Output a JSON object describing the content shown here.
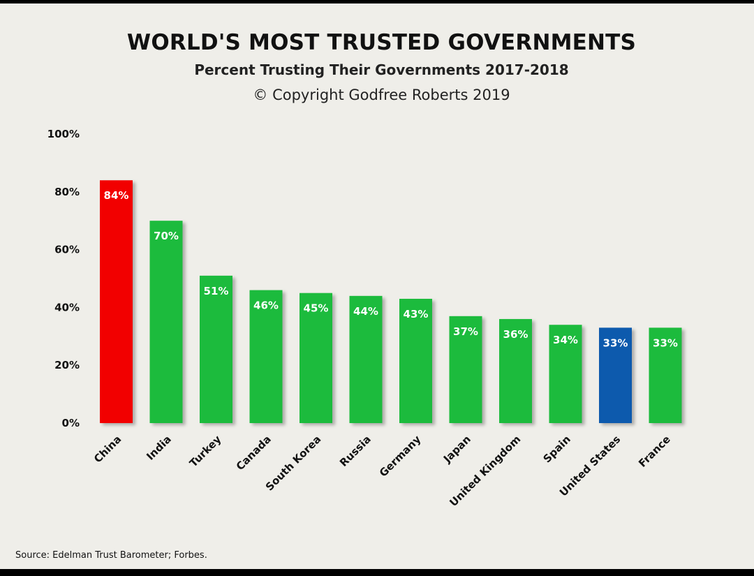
{
  "title": "WORLD'S MOST TRUSTED GOVERNMENTS",
  "subtitle": "Percent Trusting Their Governments 2017-2018",
  "copyright": "© Copyright Godfree Roberts 2019",
  "source": "Source: Edelman Trust Barometer; Forbes.",
  "colors": {
    "default_bar": "#1dbb3c",
    "highlight_china": "#f20000",
    "highlight_us": "#0a5aad",
    "background": "#efeee9"
  },
  "chart_data": {
    "type": "bar",
    "title": "WORLD'S MOST TRUSTED GOVERNMENTS",
    "subtitle": "Percent Trusting Their Governments 2017-2018",
    "categories": [
      "China",
      "India",
      "Turkey",
      "Canada",
      "South Korea",
      "Russia",
      "Germany",
      "Japan",
      "United Kingdom",
      "Spain",
      "United States",
      "France"
    ],
    "values": [
      84,
      70,
      51,
      46,
      45,
      44,
      43,
      37,
      36,
      34,
      33,
      33
    ],
    "data_labels": [
      "84%",
      "70%",
      "51%",
      "46%",
      "45%",
      "44%",
      "43%",
      "37%",
      "36%",
      "34%",
      "33%",
      "33%"
    ],
    "bar_colors": [
      "#f20000",
      "#1dbb3c",
      "#1dbb3c",
      "#1dbb3c",
      "#1dbb3c",
      "#1dbb3c",
      "#1dbb3c",
      "#1dbb3c",
      "#1dbb3c",
      "#1dbb3c",
      "#0a5aad",
      "#1dbb3c"
    ],
    "ylim": [
      0,
      100
    ],
    "yticks": [
      0,
      20,
      40,
      60,
      80,
      100
    ],
    "ytick_labels": [
      "0%",
      "20%",
      "40%",
      "60%",
      "80%",
      "100%"
    ],
    "xlabel": "",
    "ylabel": "",
    "grid": false,
    "legend": false
  }
}
